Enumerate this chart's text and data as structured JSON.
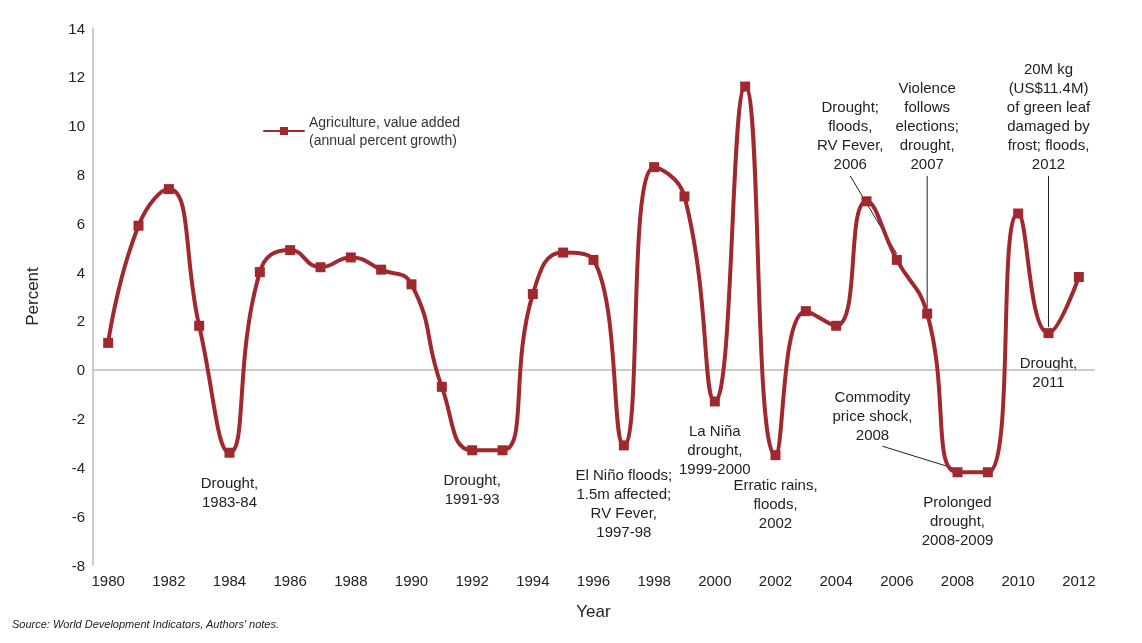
{
  "chart_data": {
    "type": "line",
    "xlabel": "Year",
    "ylabel": "Percent",
    "x": [
      1980,
      1981,
      1982,
      1983,
      1984,
      1985,
      1986,
      1987,
      1988,
      1989,
      1990,
      1991,
      1992,
      1993,
      1994,
      1995,
      1996,
      1997,
      1998,
      1999,
      2000,
      2001,
      2002,
      2003,
      2004,
      2005,
      2006,
      2007,
      2008,
      2009,
      2010,
      2011,
      2012
    ],
    "series": [
      {
        "name": "Agriculture, value added (annual percent growth)",
        "color": "#a0282f",
        "values": [
          1.1,
          5.9,
          7.4,
          1.8,
          -3.4,
          4.0,
          4.9,
          4.2,
          4.6,
          4.1,
          3.5,
          -0.7,
          -3.3,
          -3.3,
          3.1,
          4.8,
          4.5,
          -3.1,
          8.3,
          7.1,
          -1.3,
          11.6,
          -3.5,
          2.4,
          1.8,
          6.9,
          4.5,
          2.3,
          -4.2,
          -4.2,
          6.4,
          1.5,
          3.8
        ]
      }
    ],
    "xlim": [
      1979.5,
      2012.5
    ],
    "xticks": [
      1980,
      1982,
      1984,
      1986,
      1988,
      1990,
      1992,
      1994,
      1996,
      1998,
      2000,
      2002,
      2004,
      2006,
      2008,
      2010,
      2012
    ],
    "ylim": [
      -8,
      14
    ],
    "yticks": [
      -8,
      -6,
      -4,
      -2,
      0,
      2,
      4,
      6,
      8,
      10,
      12,
      14
    ],
    "marker": "square",
    "line_style": "solid",
    "legend": "top left",
    "annotations": [
      {
        "text": "Drought,\n1983-84",
        "x": 1984,
        "y": -3.4
      },
      {
        "text": "Drought,\n1991-93",
        "x": 1992,
        "y": -3.3
      },
      {
        "text": "El Niño floods;\n1.5m affected;\nRV Fever,\n1997-98",
        "x": 1997,
        "y": -3.1
      },
      {
        "text": "La Niña\ndrought,\n1999-2000",
        "x": 2000,
        "y": -1.3
      },
      {
        "text": "Erratic rains,\nfloods,\n2002",
        "x": 2002,
        "y": -3.5
      },
      {
        "text": "Drought;\nfloods,\nRV Fever,\n2006",
        "x": 2006,
        "y": 4.5
      },
      {
        "text": "Violence\nfollows\nelections;\ndrought,\n2007",
        "x": 2007,
        "y": 2.3
      },
      {
        "text": "Prolonged\ndrought,\n2008-2009",
        "x": 2008,
        "y": -4.2
      },
      {
        "text": "Commodity\nprice shock,\n2008",
        "x": 2008,
        "y": -4.2
      },
      {
        "text": "20M kg\n(US$11.4M)\nof green leaf\ndamaged by\nfrost; floods,\n2012",
        "x": 2011,
        "y": 1.5
      },
      {
        "text": "Drought,\n2011",
        "x": 2011,
        "y": 1.5
      },
      "Source: World Development Indicators, Authors' notes."
    ]
  }
}
